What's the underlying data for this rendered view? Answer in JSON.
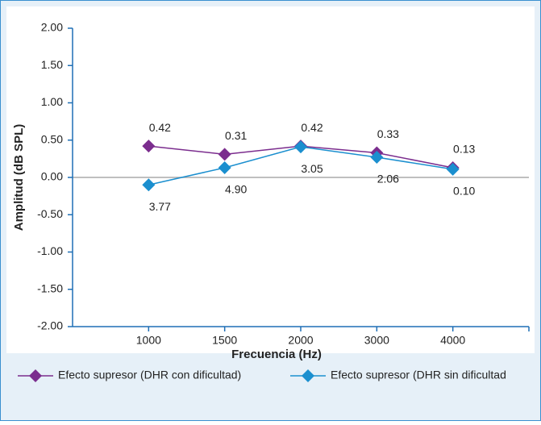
{
  "chart_data": {
    "type": "line",
    "x_label": "Frecuencia (Hz)",
    "y_label": "Amplitud (dB SPL)",
    "categories": [
      "1000",
      "1500",
      "2000",
      "3000",
      "4000"
    ],
    "series": [
      {
        "name": "Efecto supresor (DHR con dificultad)",
        "color": "#7b2d8e",
        "values": [
          0.42,
          0.31,
          0.42,
          0.33,
          0.13
        ]
      },
      {
        "name": "Efecto supresor (DHR sin dificultad",
        "color": "#1b8fcf",
        "values": [
          -0.1,
          0.13,
          0.41,
          0.27,
          0.11
        ]
      }
    ],
    "annotations": [
      "3.77",
      "4.90",
      "3.05",
      "2.06",
      "0.10"
    ],
    "ylim": [
      -2,
      2
    ],
    "yticks": [
      {
        "value": -2,
        "label": "-2.00"
      },
      {
        "value": -1.5,
        "label": "-1.50"
      },
      {
        "value": -1,
        "label": "-1.00"
      },
      {
        "value": -0.5,
        "label": "-0.50"
      },
      {
        "value": 0,
        "label": "0.00"
      },
      {
        "value": 0.5,
        "label": "0.50"
      },
      {
        "value": 1,
        "label": "1.00"
      },
      {
        "value": 1.5,
        "label": "1.50"
      },
      {
        "value": 2,
        "label": "2.00"
      }
    ],
    "legend": "bottom"
  }
}
